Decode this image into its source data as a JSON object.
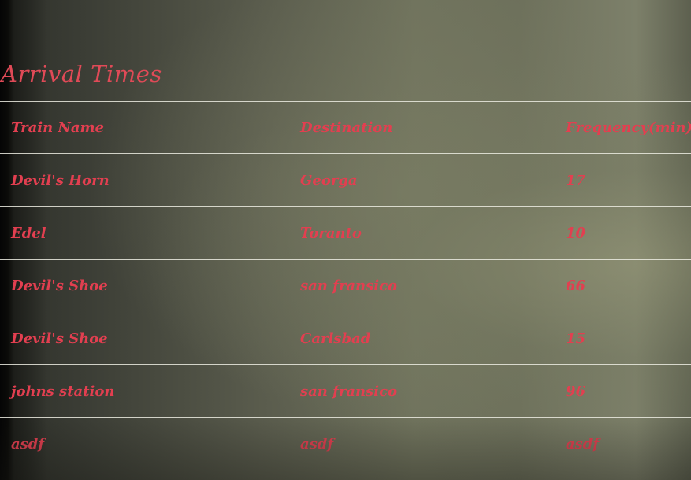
{
  "page": {
    "title": "Arrival Times"
  },
  "table": {
    "headers": [
      "Train Name",
      "Destination",
      "Frequency(min)"
    ],
    "rows": [
      [
        "Devil's Horn",
        "Georga",
        "17"
      ],
      [
        "Edel",
        "Toranto",
        "10"
      ],
      [
        "Devil's Shoe",
        "san fransico",
        "66"
      ],
      [
        "Devil's Shoe",
        "Carlsbad",
        "15"
      ],
      [
        "johns station",
        "san fransico",
        "96"
      ],
      [
        "asdf",
        "asdf",
        "asdf"
      ]
    ]
  },
  "colors": {
    "text_accent": "#e23f50",
    "divider": "#ebebe1",
    "background": "#5a5c4d"
  }
}
